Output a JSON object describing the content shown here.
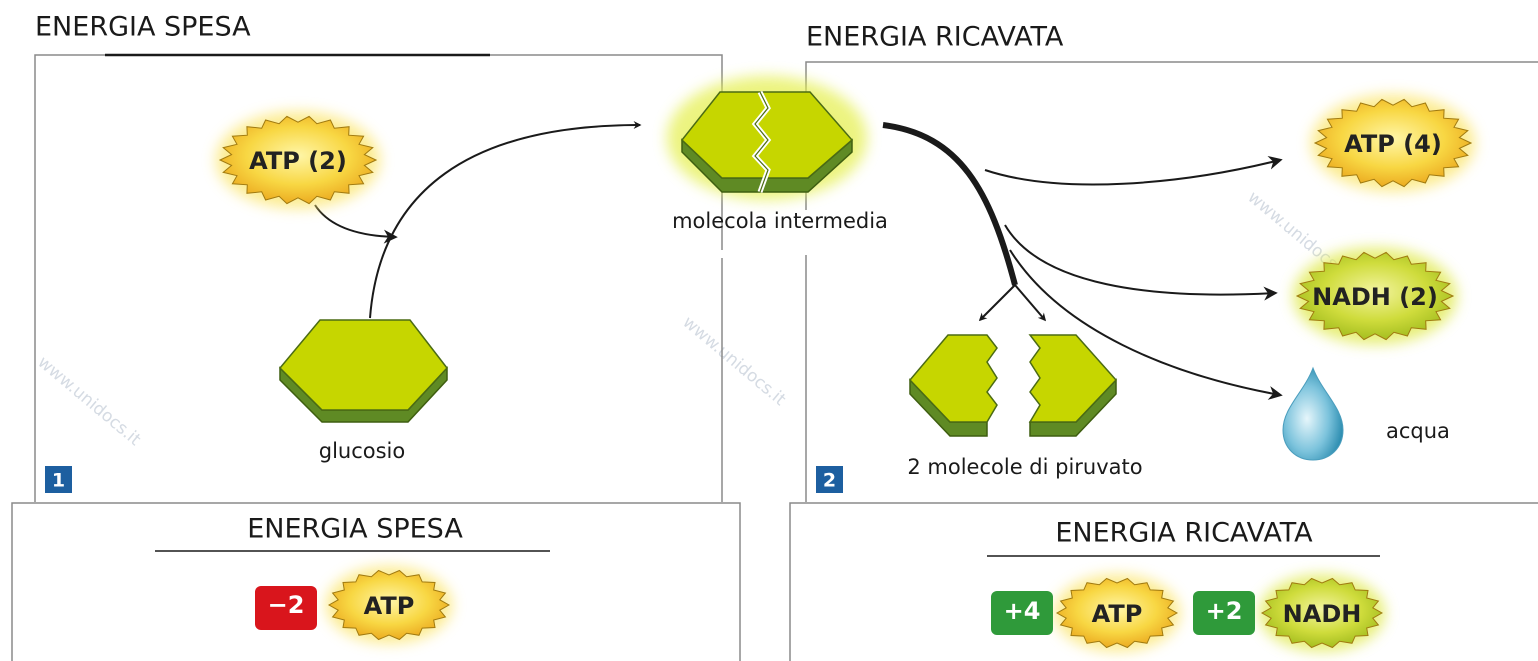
{
  "step1": {
    "heading": "ENERGIA SPESA",
    "number": "1",
    "atp_badge": "ATP (2)",
    "glucose": "glucosio"
  },
  "center": {
    "intermediate": "molecola intermedia"
  },
  "step2": {
    "heading": "ENERGIA RICAVATA",
    "number": "2",
    "atp_badge": "ATP (4)",
    "nadh_badge": "NADH (2)",
    "water": "acqua",
    "pyruvate": "2 molecole di piruvato"
  },
  "summary_spent": {
    "heading": "ENERGIA SPESA",
    "amount": "−2",
    "molecule": "ATP"
  },
  "summary_gained": {
    "heading": "ENERGIA RICAVATA",
    "items": [
      {
        "amount": "+4",
        "molecule": "ATP"
      },
      {
        "amount": "+2",
        "molecule": "NADH"
      }
    ]
  },
  "watermark": "www.unidocs.it"
}
